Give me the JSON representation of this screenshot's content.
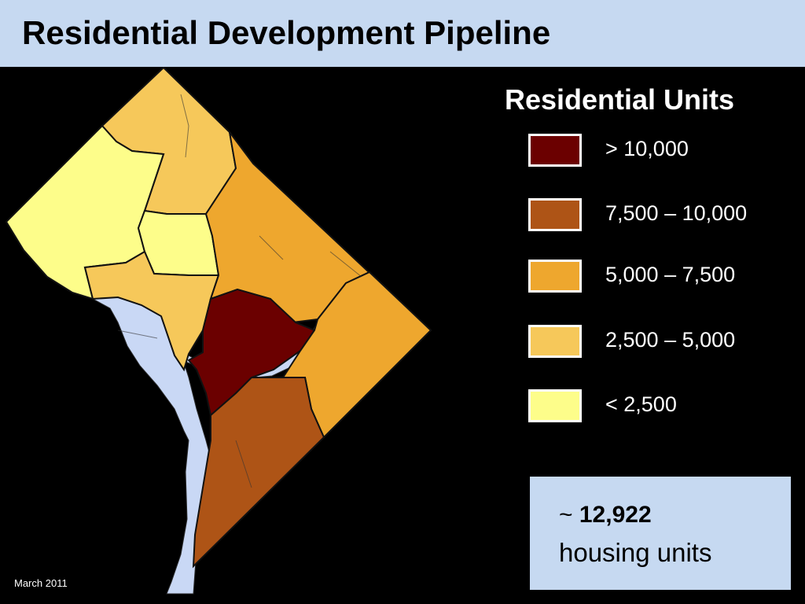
{
  "slide": {
    "title": "Residential Development Pipeline",
    "date": "March 2011"
  },
  "legend": {
    "title": "Residential Units",
    "items": [
      {
        "label": "> 10,000",
        "color": "#6b0000"
      },
      {
        "label": "7,500 – 10,000",
        "color": "#ae5416"
      },
      {
        "label": "5,000 – 7,500",
        "color": "#eea72e"
      },
      {
        "label": "2,500 – 5,000",
        "color": "#f6c85a"
      },
      {
        "label": "< 2,500",
        "color": "#fdfd8a"
      }
    ]
  },
  "summary": {
    "prefix": "~",
    "value": "12,922",
    "unit": "housing units"
  },
  "map": {
    "water_color": "#c9d8f5",
    "regions": [
      {
        "id": "northwest-upper",
        "category": "2,500 – 5,000"
      },
      {
        "id": "far-west",
        "category": "< 2,500"
      },
      {
        "id": "west-pocket",
        "category": "< 2,500"
      },
      {
        "id": "central-west",
        "category": "< 2,500"
      },
      {
        "id": "west-south",
        "category": "2,500 – 5,000"
      },
      {
        "id": "northeast",
        "category": "5,000 – 7,500"
      },
      {
        "id": "downtown",
        "category": "> 10,000"
      },
      {
        "id": "east",
        "category": "5,000 – 7,500"
      },
      {
        "id": "southeast",
        "category": "7,500 – 10,000"
      }
    ]
  }
}
